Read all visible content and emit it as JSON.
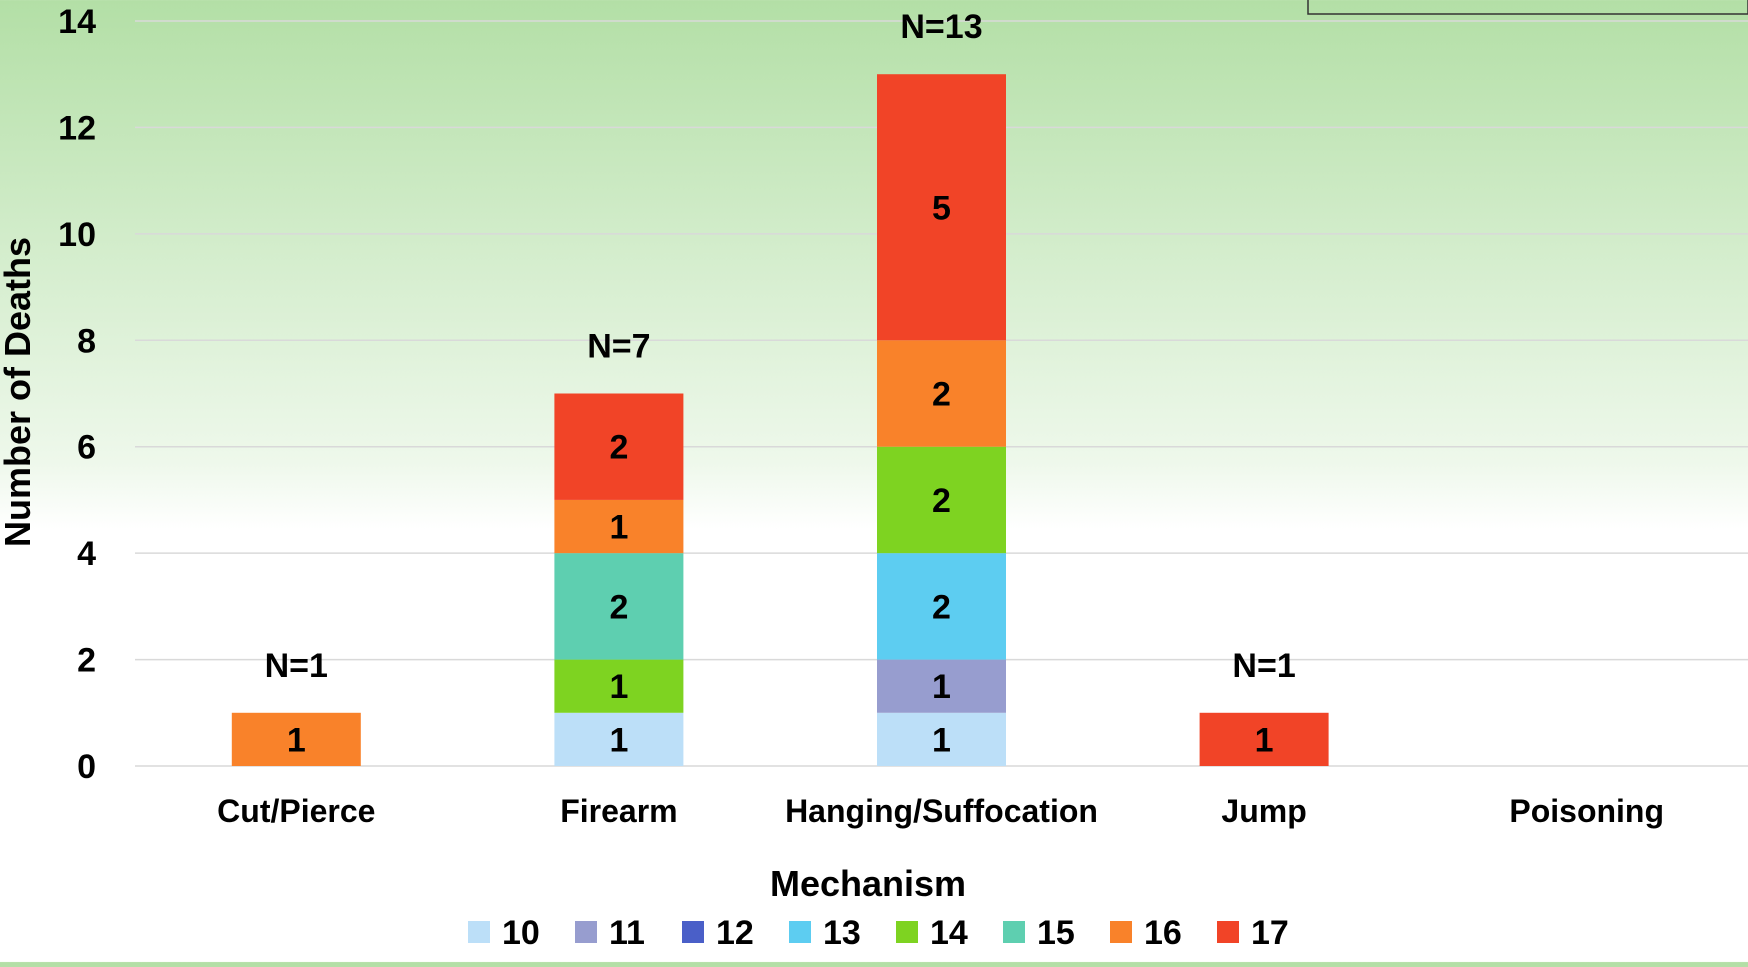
{
  "chart_data": {
    "type": "bar",
    "stacked": true,
    "xlabel": "Mechanism",
    "ylabel": "Number of Deaths",
    "ylim": [
      0,
      14
    ],
    "yticks": [
      0,
      2,
      4,
      6,
      8,
      10,
      12,
      14
    ],
    "grid": true,
    "legend_position": "bottom",
    "categories": [
      "Cut/Pierce",
      "Firearm",
      "Hanging/Suffocation",
      "Jump",
      "Poisoning"
    ],
    "totals": [
      1,
      7,
      13,
      1,
      0
    ],
    "total_labels": [
      "N=1",
      "N=7",
      "N=13",
      "N=1",
      ""
    ],
    "series": [
      {
        "name": "10",
        "color": "#bcdff8",
        "values": [
          0,
          1,
          1,
          0,
          0
        ]
      },
      {
        "name": "11",
        "color": "#979dcf",
        "values": [
          0,
          0,
          1,
          0,
          0
        ]
      },
      {
        "name": "12",
        "color": "#4a5fc8",
        "values": [
          0,
          0,
          0,
          0,
          0
        ]
      },
      {
        "name": "13",
        "color": "#5dcdf1",
        "values": [
          0,
          0,
          2,
          0,
          0
        ]
      },
      {
        "name": "14",
        "color": "#7ed321",
        "values": [
          0,
          1,
          2,
          0,
          0
        ]
      },
      {
        "name": "15",
        "color": "#5ecfb0",
        "values": [
          0,
          2,
          0,
          0,
          0
        ]
      },
      {
        "name": "16",
        "color": "#f9822a",
        "values": [
          1,
          1,
          2,
          0,
          0
        ]
      },
      {
        "name": "17",
        "color": "#f14427",
        "values": [
          0,
          2,
          5,
          1,
          0
        ]
      }
    ]
  }
}
